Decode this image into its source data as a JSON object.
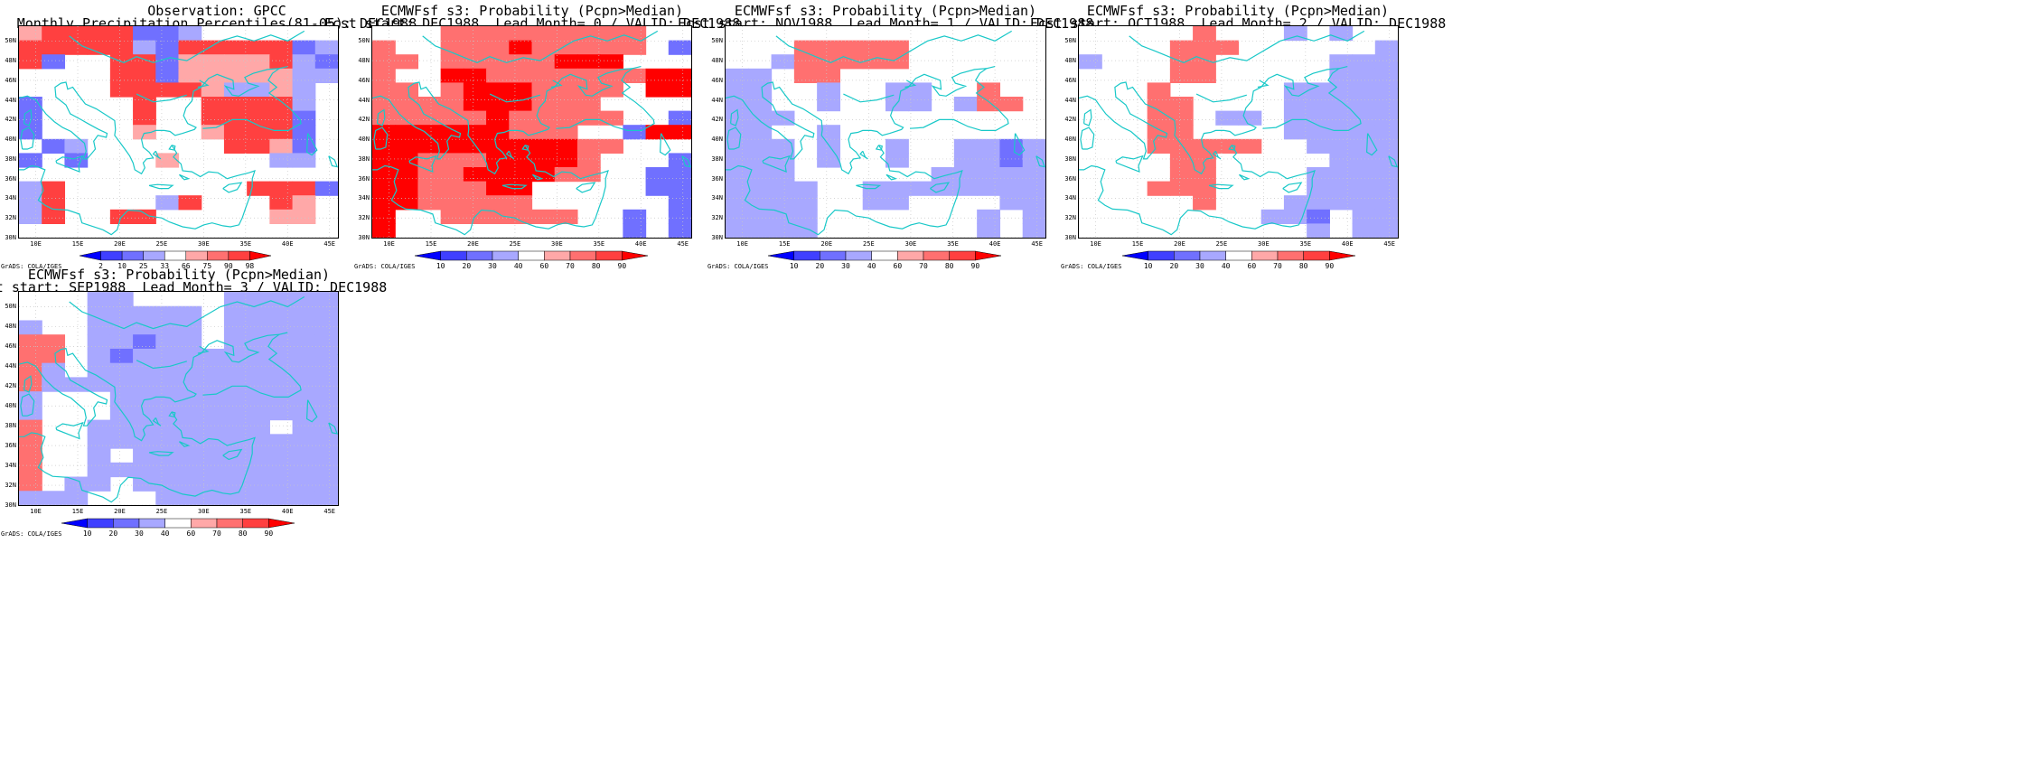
{
  "map": {
    "lon_range": [
      8,
      46
    ],
    "lat_range": [
      30,
      51.5
    ],
    "x_ticks": [
      "10E",
      "15E",
      "20E",
      "25E",
      "30E",
      "35E",
      "40E",
      "45E"
    ],
    "y_ticks": [
      "30N",
      "32N",
      "34N",
      "36N",
      "38N",
      "40N",
      "42N",
      "44N",
      "46N",
      "48N",
      "50N"
    ],
    "grid_dx_deg": 2.5,
    "grid_dy_deg": 2.5,
    "coast_color": "#19c8c8"
  },
  "grads_label": "GrADS: COLA/IGES",
  "palettes": {
    "obs": {
      "labels": [
        "2",
        "10",
        "25",
        "33",
        "66",
        "75",
        "90",
        "98"
      ],
      "colors": [
        "#0000ff",
        "#4040ff",
        "#7070ff",
        "#a8a8ff",
        "#ffffff",
        "#ffa8a8",
        "#ff7070",
        "#ff4040",
        "#ff0000"
      ]
    },
    "prob": {
      "labels": [
        "10",
        "20",
        "30",
        "40",
        "60",
        "70",
        "80",
        "90"
      ],
      "colors": [
        "#0000ff",
        "#4040ff",
        "#7070ff",
        "#a8a8ff",
        "#ffffff",
        "#ffa8a8",
        "#ff7070",
        "#ff4040",
        "#ff0000"
      ]
    }
  },
  "panels": [
    {
      "title_line1": "Observation: GPCC",
      "title_line2": "Monthly Precipitation Percentiles(81-05): DEC1988",
      "palette": "obs",
      "grid": [
        "34444112000000",
        "44444214444412",
        "41004413333421",
        "00004413333322",
        "00004444322320",
        "10000400444420",
        "10000400444410",
        "10000300344410",
        "01200000044310",
        "10100030000220",
        "00000000000000",
        "24000000004441",
        "24000024000430",
        "24004400000330",
        "00000000000000"
      ]
    },
    {
      "title_line1": "ECMWFsf s3: Probability (Pcpn>Median)",
      "title_line2": "Fcst start: DEC1988  Lead Month= 0 / VALID: DEC1988",
      "palette": "prob",
      "grid": [
        "00033333333300",
        "30033343333301",
        "33033333444000",
        "30044333333344",
        "33034443333044",
        "33334443330000",
        "33333433333001",
        "44444433300144",
        "44444444433000",
        "44333444430001",
        "44334444330011",
        "44333440000011",
        "44333330000001",
        "40033333300101",
        "40000000000101"
      ]
    },
    {
      "title_line1": "ECMWFsf s3: Probability (Pcpn>Median)",
      "title_line2": "Fcst start: NOV1988  Lead Month= 1 / VALID: DEC1988",
      "palette": "prob",
      "grid": [
        "00000000000000",
        "00033333000000",
        "00133333000000",
        "11033000000000",
        "11001001100300",
        "11001001101330",
        "11100000000000",
        "11001000000000",
        "11101001001121",
        "11101001001121",
        "11100000011111",
        "11110011111111",
        "11110011000011",
        "11110000000101",
        "11110000000101"
      ]
    },
    {
      "title_line1": "ECMWFsf s3: Probability (Pcpn>Median)",
      "title_line2": "Fcst start: OCT1988  Lead Month= 2 / VALID: DEC1988",
      "palette": "prob",
      "grid": [
        "00000300010100",
        "00003330000001",
        "10003300000111",
        "00003300000111",
        "00030000011111",
        "00033000011111",
        "00033011011111",
        "00033000011111",
        "00033333001111",
        "00003300000111",
        "00003300001111",
        "00033300001111",
        "00000300011111",
        "00000000112011",
        "00000000001011"
      ]
    },
    {
      "title_line1": "ECMWFsf s3: Probability (Pcpn>Median)",
      "title_line2": "Fcst start: SEP1988  Lead Month= 3 / VALID: DEC1988",
      "palette": "prob",
      "grid": [
        "00011000011111",
        "00011111011111",
        "10011111011111",
        "33011211011111",
        "33012111111111",
        "31011111111111",
        "31111111111111",
        "10001111111111",
        "10001111111111",
        "30011111111011",
        "30011111111111",
        "30010111111111",
        "30011111111111",
        "30110111111111",
        "11100011111111"
      ]
    }
  ]
}
